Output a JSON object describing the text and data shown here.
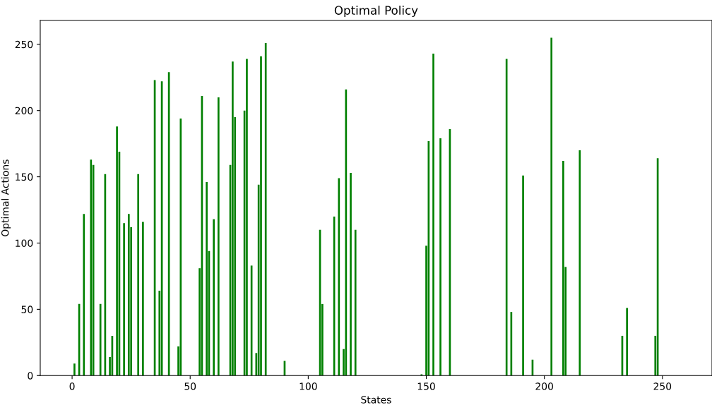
{
  "chart_data": {
    "type": "bar",
    "title": "Optimal Policy",
    "xlabel": "States",
    "ylabel": "Optimal Actions",
    "color": "#008000",
    "x": [
      1,
      3,
      5,
      8,
      9,
      12,
      14,
      16,
      17,
      19,
      20,
      22,
      24,
      25,
      28,
      30,
      35,
      37,
      38,
      41,
      45,
      46,
      54,
      55,
      57,
      58,
      60,
      62,
      67,
      68,
      69,
      73,
      74,
      76,
      78,
      79,
      80,
      82,
      90,
      105,
      106,
      111,
      113,
      115,
      116,
      118,
      120,
      148,
      150,
      151,
      153,
      156,
      160,
      184,
      186,
      191,
      195,
      203,
      208,
      209,
      215,
      233,
      235,
      247,
      248
    ],
    "values": [
      9,
      54,
      122,
      163,
      159,
      54,
      152,
      14,
      30,
      188,
      169,
      115,
      122,
      112,
      152,
      116,
      223,
      64,
      222,
      229,
      22,
      194,
      81,
      211,
      146,
      94,
      118,
      210,
      159,
      237,
      195,
      200,
      239,
      83,
      17,
      144,
      241,
      251,
      11,
      110,
      54,
      120,
      149,
      20,
      216,
      153,
      110,
      1,
      98,
      177,
      243,
      179,
      186,
      239,
      48,
      151,
      12,
      255,
      162,
      82,
      170,
      30,
      51,
      30,
      164
    ],
    "xlim": [
      -13.5,
      271
    ],
    "ylim": [
      0,
      268
    ],
    "xticks": [
      0,
      50,
      100,
      150,
      200,
      250
    ],
    "yticks": [
      0,
      50,
      100,
      150,
      200,
      250
    ],
    "grid": false,
    "legend": false
  }
}
